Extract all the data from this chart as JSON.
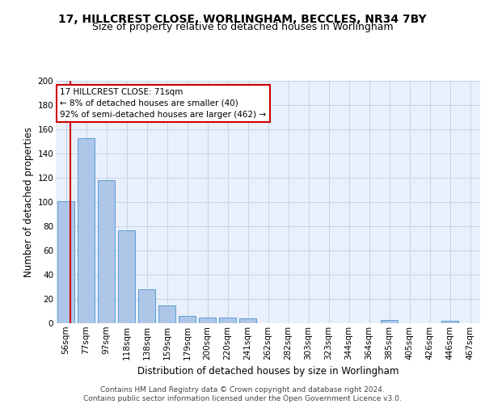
{
  "title": "17, HILLCREST CLOSE, WORLINGHAM, BECCLES, NR34 7BY",
  "subtitle": "Size of property relative to detached houses in Worlingham",
  "xlabel": "Distribution of detached houses by size in Worlingham",
  "ylabel": "Number of detached properties",
  "categories": [
    "56sqm",
    "77sqm",
    "97sqm",
    "118sqm",
    "138sqm",
    "159sqm",
    "179sqm",
    "200sqm",
    "220sqm",
    "241sqm",
    "262sqm",
    "282sqm",
    "303sqm",
    "323sqm",
    "344sqm",
    "364sqm",
    "385sqm",
    "405sqm",
    "426sqm",
    "446sqm",
    "467sqm"
  ],
  "values": [
    101,
    153,
    118,
    77,
    28,
    15,
    6,
    5,
    5,
    4,
    0,
    0,
    0,
    0,
    0,
    0,
    3,
    0,
    0,
    2,
    0
  ],
  "bar_color": "#aec6e8",
  "bar_edge_color": "#5a9fd4",
  "annotation_text": "17 HILLCREST CLOSE: 71sqm\n← 8% of detached houses are smaller (40)\n92% of semi-detached houses are larger (462) →",
  "annotation_box_color": "#ffffff",
  "annotation_box_edge_color": "#cc0000",
  "property_line_color": "#cc0000",
  "ylim": [
    0,
    200
  ],
  "yticks": [
    0,
    20,
    40,
    60,
    80,
    100,
    120,
    140,
    160,
    180,
    200
  ],
  "background_color": "#eaf0fb",
  "footer": "Contains HM Land Registry data © Crown copyright and database right 2024.\nContains public sector information licensed under the Open Government Licence v3.0.",
  "title_fontsize": 10,
  "subtitle_fontsize": 9,
  "xlabel_fontsize": 8.5,
  "ylabel_fontsize": 8.5,
  "tick_fontsize": 7.5,
  "footer_fontsize": 6.5
}
